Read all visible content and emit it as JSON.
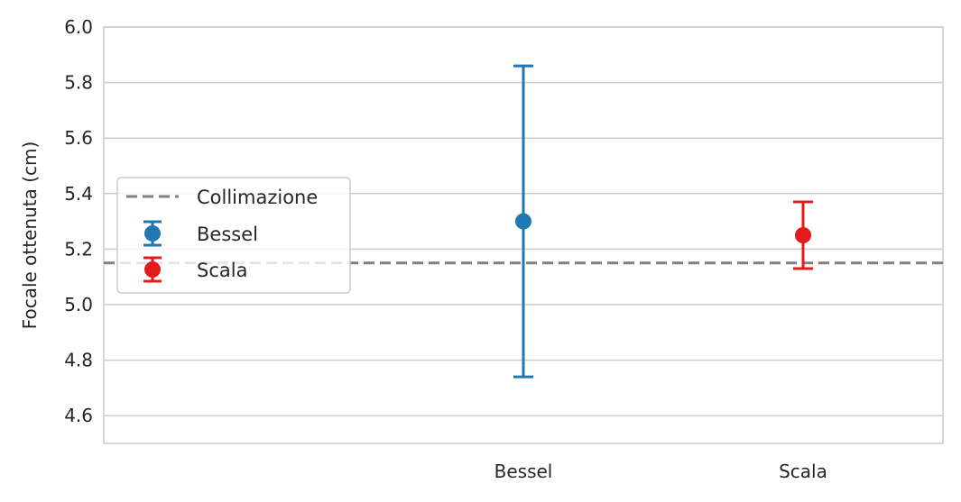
{
  "chart_data": {
    "type": "scatter",
    "ylabel": "Focale ottenuta (cm)",
    "xlabel": "",
    "ylim": [
      4.5,
      6.0
    ],
    "yticks": [
      4.6,
      4.8,
      5.0,
      5.2,
      5.4,
      5.6,
      5.8,
      6.0
    ],
    "categories": [
      "Bessel",
      "Scala"
    ],
    "grid": true,
    "legend_position": "center-left",
    "series": [
      {
        "name": "Bessel",
        "category": "Bessel",
        "value": 5.3,
        "error": 0.56,
        "color": "#1f77b4"
      },
      {
        "name": "Scala",
        "category": "Scala",
        "value": 5.25,
        "error": 0.12,
        "color": "#e41a1c"
      }
    ],
    "reference_line": {
      "name": "Collimazione",
      "value": 5.15,
      "style": "dashed",
      "color": "#808080"
    }
  }
}
